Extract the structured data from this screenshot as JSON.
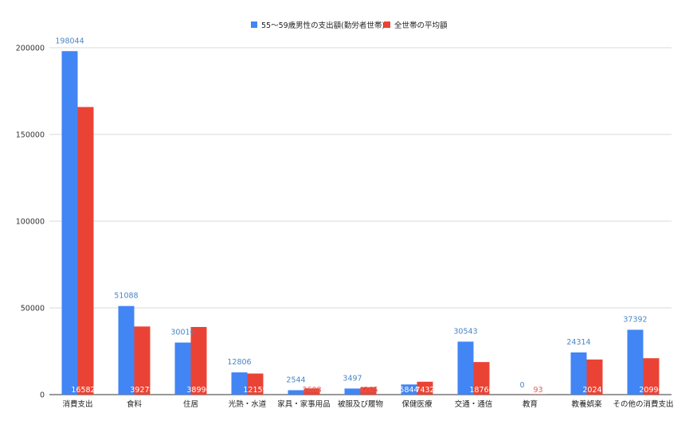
{
  "chart_data": {
    "type": "bar",
    "categories": [
      "消費支出",
      "食料",
      "住居",
      "光熱・水道",
      "家具・家事用品",
      "被服及び履物",
      "保健医療",
      "交通・通信",
      "教育",
      "教養娯楽",
      "その他の消費支出"
    ],
    "series": [
      {
        "name": "55～59歳男性の支出額(勤労者世帯)",
        "color": "#4285f4",
        "values": [
          198044,
          51088,
          30016,
          12806,
          2544,
          3497,
          5844,
          30543,
          0,
          24314,
          37392
        ]
      },
      {
        "name": "全世帯の平均額",
        "color": "#ea4335",
        "values": [
          165822,
          39278,
          38990,
          12159,
          3608,
          4265,
          7432,
          18760,
          93,
          20241,
          20996
        ]
      }
    ],
    "title": "",
    "xlabel": "",
    "ylabel": "",
    "ylim": [
      0,
      200000
    ],
    "yticks": [
      0,
      50000,
      100000,
      150000,
      200000
    ],
    "grid": true,
    "legend": "top-center"
  }
}
